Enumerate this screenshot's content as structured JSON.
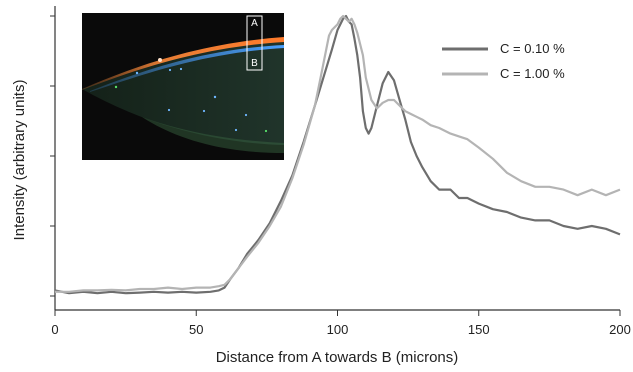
{
  "chart_data": {
    "type": "line",
    "xlabel": "Distance from A towards B (microns)",
    "ylabel": "Intensity (arbitrary units)",
    "xlim": [
      0,
      200
    ],
    "ylim": [
      0,
      1
    ],
    "x_ticks": [
      0,
      50,
      100,
      150,
      200
    ],
    "grid": false,
    "legend_position": "top-right",
    "series": [
      {
        "name": "C = 0.10 %",
        "color": "#6e6e6e",
        "points": [
          [
            0,
            0.02
          ],
          [
            5,
            0.01
          ],
          [
            10,
            0.015
          ],
          [
            15,
            0.01
          ],
          [
            20,
            0.015
          ],
          [
            25,
            0.01
          ],
          [
            30,
            0.012
          ],
          [
            35,
            0.015
          ],
          [
            40,
            0.012
          ],
          [
            45,
            0.015
          ],
          [
            50,
            0.012
          ],
          [
            55,
            0.015
          ],
          [
            58,
            0.02
          ],
          [
            60,
            0.03
          ],
          [
            62,
            0.06
          ],
          [
            65,
            0.1
          ],
          [
            68,
            0.15
          ],
          [
            72,
            0.2
          ],
          [
            76,
            0.26
          ],
          [
            80,
            0.34
          ],
          [
            84,
            0.43
          ],
          [
            88,
            0.55
          ],
          [
            92,
            0.68
          ],
          [
            95,
            0.78
          ],
          [
            98,
            0.88
          ],
          [
            100,
            0.95
          ],
          [
            102,
            0.99
          ],
          [
            103,
            1.0
          ],
          [
            104,
            0.98
          ],
          [
            105,
            0.97
          ],
          [
            106,
            0.92
          ],
          [
            107,
            0.86
          ],
          [
            108,
            0.78
          ],
          [
            109,
            0.66
          ],
          [
            110,
            0.6
          ],
          [
            111,
            0.58
          ],
          [
            112,
            0.6
          ],
          [
            114,
            0.68
          ],
          [
            116,
            0.76
          ],
          [
            118,
            0.8
          ],
          [
            120,
            0.77
          ],
          [
            122,
            0.7
          ],
          [
            124,
            0.63
          ],
          [
            126,
            0.55
          ],
          [
            128,
            0.5
          ],
          [
            130,
            0.46
          ],
          [
            133,
            0.41
          ],
          [
            136,
            0.38
          ],
          [
            140,
            0.38
          ],
          [
            143,
            0.35
          ],
          [
            146,
            0.35
          ],
          [
            150,
            0.33
          ],
          [
            155,
            0.31
          ],
          [
            160,
            0.3
          ],
          [
            165,
            0.28
          ],
          [
            170,
            0.27
          ],
          [
            175,
            0.27
          ],
          [
            180,
            0.25
          ],
          [
            185,
            0.24
          ],
          [
            190,
            0.25
          ],
          [
            195,
            0.24
          ],
          [
            200,
            0.22
          ]
        ]
      },
      {
        "name": "C = 1.00 %",
        "color": "#b4b4b4",
        "points": [
          [
            0,
            0.015
          ],
          [
            5,
            0.015
          ],
          [
            10,
            0.02
          ],
          [
            15,
            0.02
          ],
          [
            20,
            0.022
          ],
          [
            25,
            0.02
          ],
          [
            30,
            0.025
          ],
          [
            35,
            0.025
          ],
          [
            40,
            0.03
          ],
          [
            45,
            0.025
          ],
          [
            50,
            0.03
          ],
          [
            55,
            0.03
          ],
          [
            58,
            0.035
          ],
          [
            60,
            0.04
          ],
          [
            62,
            0.06
          ],
          [
            65,
            0.1
          ],
          [
            68,
            0.14
          ],
          [
            72,
            0.19
          ],
          [
            76,
            0.25
          ],
          [
            80,
            0.32
          ],
          [
            84,
            0.42
          ],
          [
            88,
            0.54
          ],
          [
            92,
            0.68
          ],
          [
            94,
            0.78
          ],
          [
            96,
            0.88
          ],
          [
            97,
            0.93
          ],
          [
            98,
            0.95
          ],
          [
            99,
            0.96
          ],
          [
            100,
            0.97
          ],
          [
            101,
            0.99
          ],
          [
            102,
            1.0
          ],
          [
            103,
            0.99
          ],
          [
            104,
            0.98
          ],
          [
            105,
            0.99
          ],
          [
            106,
            0.97
          ],
          [
            107,
            0.94
          ],
          [
            108,
            0.9
          ],
          [
            109,
            0.86
          ],
          [
            110,
            0.78
          ],
          [
            112,
            0.7
          ],
          [
            114,
            0.67
          ],
          [
            116,
            0.69
          ],
          [
            118,
            0.7
          ],
          [
            120,
            0.7
          ],
          [
            122,
            0.68
          ],
          [
            124,
            0.66
          ],
          [
            126,
            0.65
          ],
          [
            128,
            0.64
          ],
          [
            130,
            0.63
          ],
          [
            133,
            0.61
          ],
          [
            136,
            0.6
          ],
          [
            140,
            0.58
          ],
          [
            143,
            0.57
          ],
          [
            146,
            0.56
          ],
          [
            150,
            0.53
          ],
          [
            155,
            0.49
          ],
          [
            160,
            0.44
          ],
          [
            165,
            0.41
          ],
          [
            170,
            0.39
          ],
          [
            175,
            0.39
          ],
          [
            180,
            0.38
          ],
          [
            185,
            0.36
          ],
          [
            190,
            0.38
          ],
          [
            195,
            0.36
          ],
          [
            200,
            0.38
          ]
        ]
      }
    ]
  },
  "inset": {
    "label_a": "A",
    "label_b": "B",
    "background_color": "#0a0a0a",
    "orange_band_color": "#f0883a",
    "blue_band_color": "#5aa8ff"
  }
}
